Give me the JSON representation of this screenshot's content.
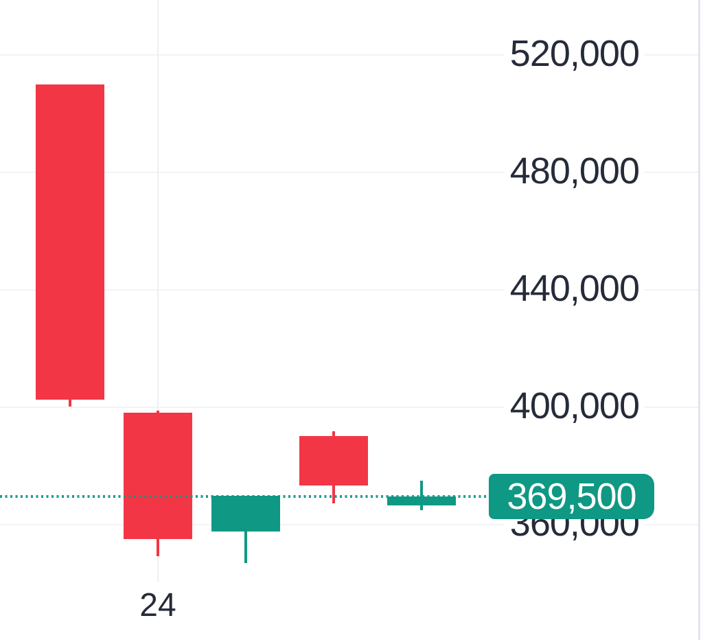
{
  "chart_data": {
    "type": "candlestick",
    "title": "",
    "xlabel": "",
    "ylabel": "",
    "grid": true,
    "legend": false,
    "ylim": [
      345000,
      530000
    ],
    "y_axis": {
      "tick_labels": [
        "520,000",
        "480,000",
        "440,000",
        "400,000",
        "360,000"
      ],
      "tick_values": [
        520000,
        480000,
        440000,
        400000,
        360000
      ]
    },
    "x_axis": {
      "visible_tick_label": "24",
      "labeled_candle_index": 1
    },
    "current_price": 369500,
    "current_price_label": "369,500",
    "candles": [
      {
        "x_label": "",
        "open": 510000,
        "high": 510000,
        "low": 400200,
        "close": 402500,
        "direction": "down"
      },
      {
        "x_label": "24",
        "open": 398100,
        "high": 398800,
        "low": 349200,
        "close": 355100,
        "direction": "down"
      },
      {
        "x_label": "",
        "open": 357700,
        "high": 369800,
        "low": 346900,
        "close": 369800,
        "direction": "up"
      },
      {
        "x_label": "",
        "open": 390200,
        "high": 391800,
        "low": 367200,
        "close": 373300,
        "direction": "down"
      },
      {
        "x_label": "",
        "open": 366500,
        "high": 375000,
        "low": 364900,
        "close": 369500,
        "direction": "up"
      }
    ],
    "colors": {
      "up": "#0f9884",
      "down": "#f23645",
      "price_line": "#0f9884",
      "price_tag_background": "#0f9884",
      "price_tag_text": "#ffffff",
      "grid": "#f2f3f6",
      "axis_text": "#262b3a",
      "axis_border": "#e2e4ee",
      "background": "#ffffff"
    }
  }
}
